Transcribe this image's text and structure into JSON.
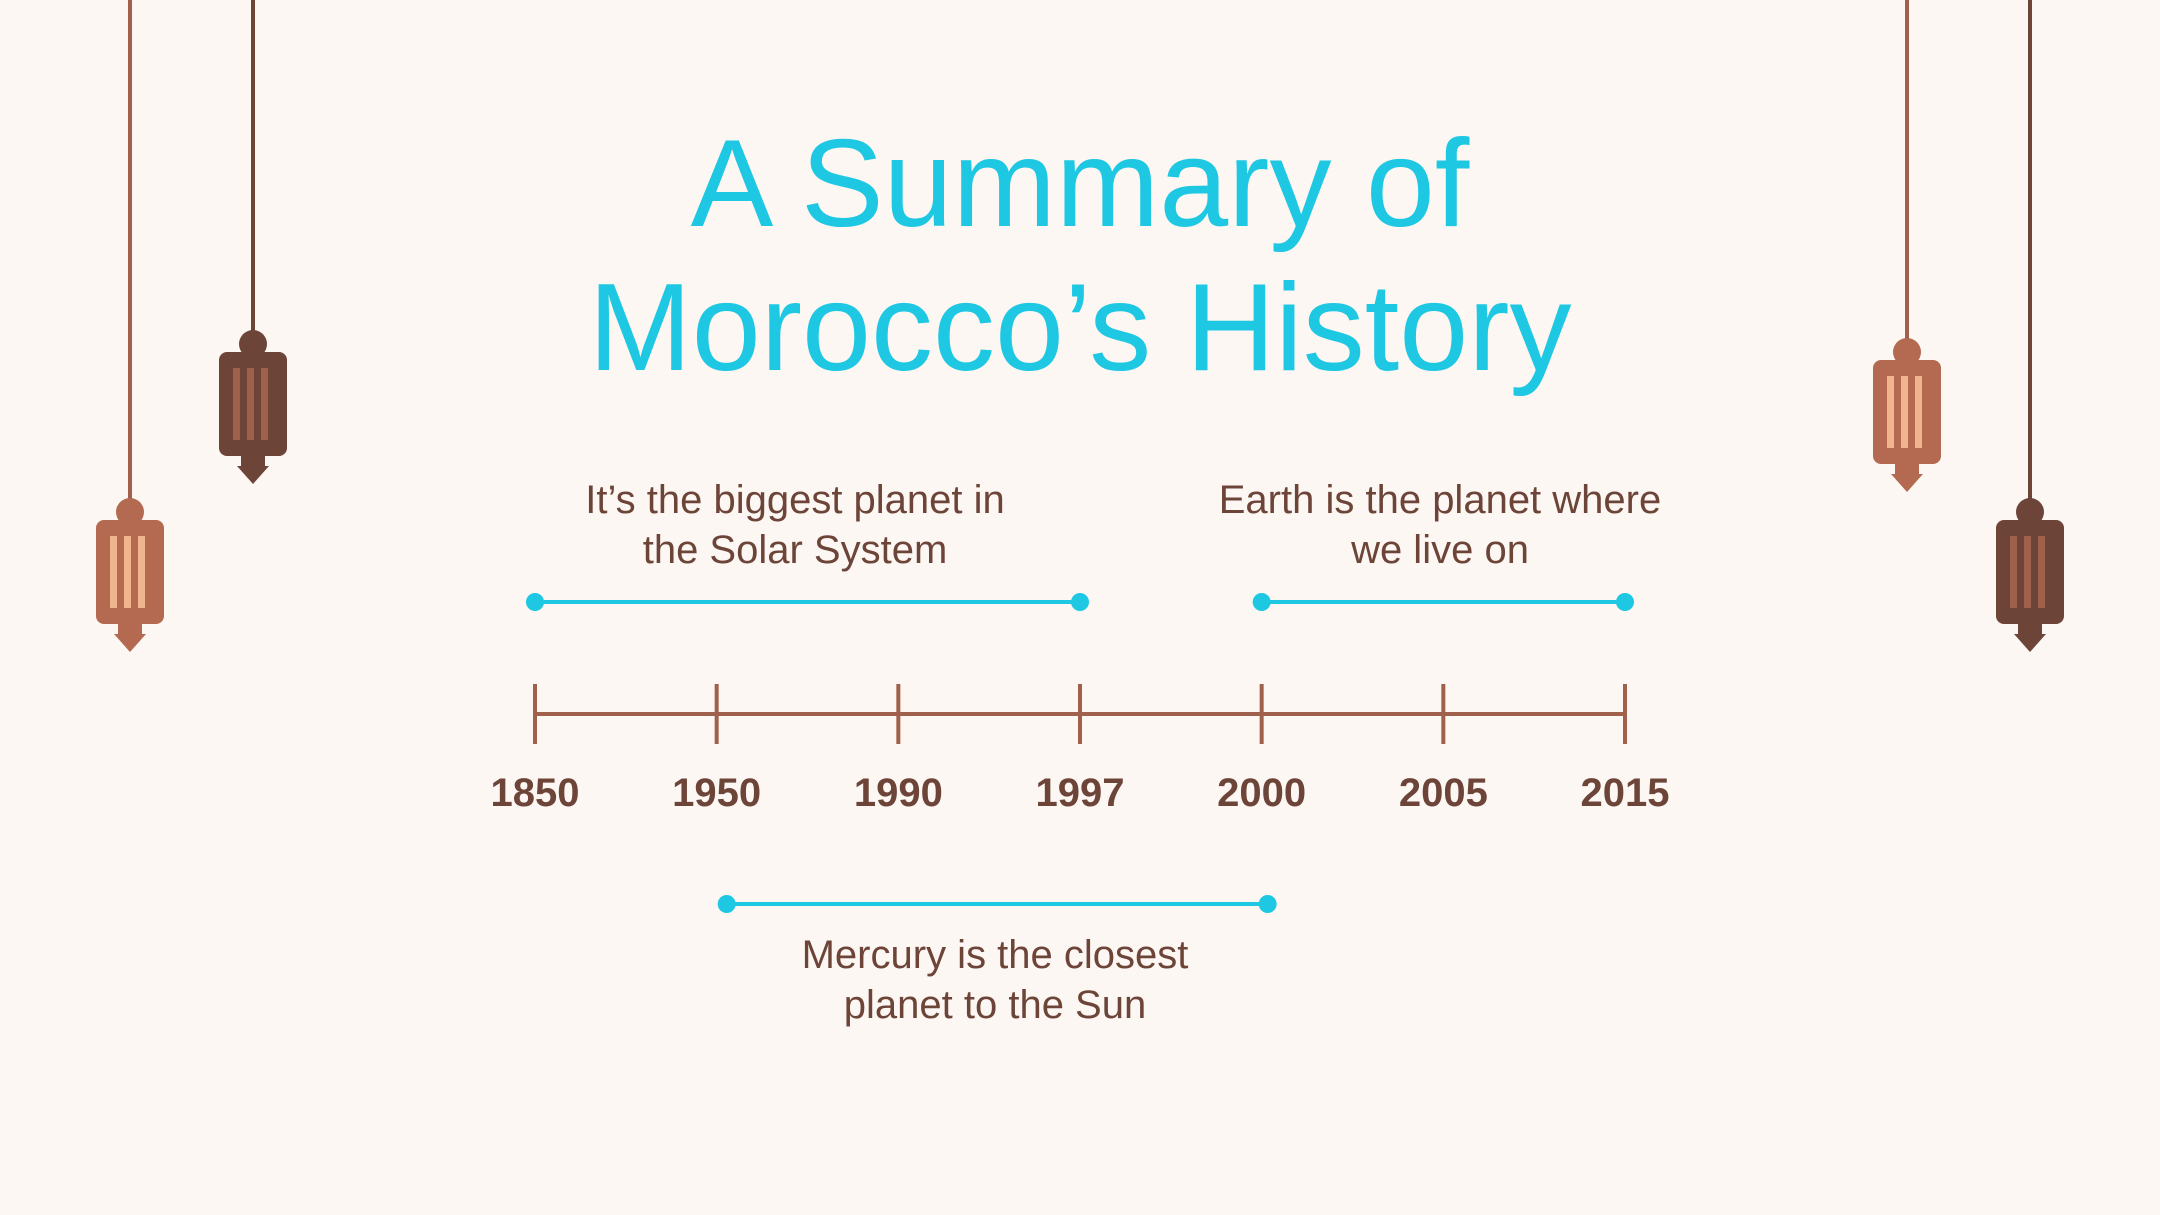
{
  "slide": {
    "title_lines": [
      "A Summary of",
      "Morocco’s History"
    ]
  },
  "timeline": {
    "years": [
      "1850",
      "1950",
      "1990",
      "1997",
      "2000",
      "2005",
      "2015"
    ],
    "periods": [
      {
        "from": "1850",
        "to": "1997",
        "caption_lines": [
          "It’s the biggest planet in",
          "the Solar System"
        ]
      },
      {
        "from": "2000",
        "to": "2015",
        "caption_lines": [
          "Earth is the planet where",
          "we live on"
        ]
      },
      {
        "from": "1950",
        "to": "2000",
        "caption_lines": [
          "Mercury is the closest",
          "planet to the Sun"
        ]
      }
    ]
  },
  "colors": {
    "background": "#fcf7f3",
    "accent": "#1ec8e3",
    "axis": "#a0614c",
    "text": "#6d4438",
    "lantern_light": "#b36a50",
    "lantern_dark": "#6d4438",
    "lantern_slat_light": "#f0b48e",
    "lantern_slat_dark": "#a0614c"
  },
  "decorations": {
    "lantern_icon": "hanging-lantern-icon"
  }
}
